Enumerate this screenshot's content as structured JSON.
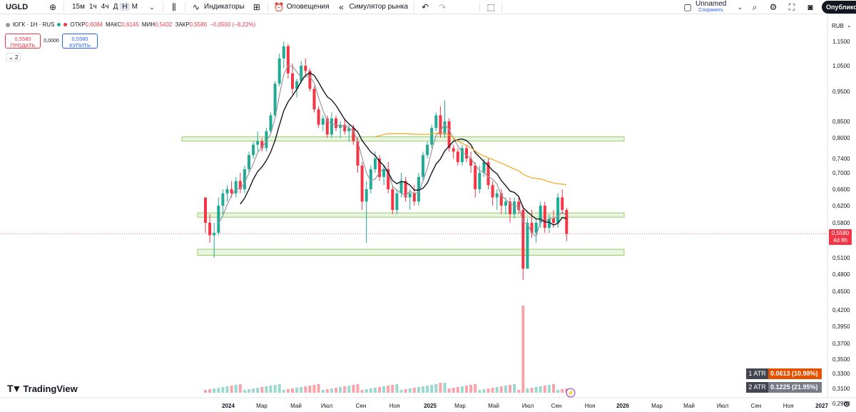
{
  "toolbar": {
    "symbol": "UGLD",
    "intervals": [
      "15м",
      "1ч",
      "4ч",
      "Д",
      "Н",
      "М"
    ],
    "active_interval": "Н",
    "indicators_label": "Индикаторы",
    "alerts_label": "Оповещения",
    "replay_label": "Симулятор рынка",
    "layout_name": "Unnamed",
    "layout_sub": "Сохранить",
    "publish_label": "Опублико"
  },
  "legend": {
    "title": "ЮГК · 1Н · RUS",
    "open_label": "ОТКР",
    "open": "0,6084",
    "high_label": "МАКС",
    "high": "0,6145",
    "low_label": "МИН",
    "low": "0,5432",
    "close_label": "ЗАКР",
    "close": "0,5580",
    "change": "−0,0500 (−8,22%)",
    "sell_price": "0,5580",
    "sell_label": "ПРОДАТЬ",
    "spread": "0,0000",
    "buy_price": "0,5580",
    "buy_label": "КУПИТЬ",
    "collapsed_count": "2"
  },
  "currency": "RUB",
  "price_axis": {
    "ticks": [
      "1,1500",
      "1,0500",
      "0,9500",
      "0,8500",
      "0,8000",
      "0,7400",
      "0,7000",
      "0,6600",
      "0,6200",
      "0,5800",
      "0,5100",
      "0,4800",
      "0,4500",
      "0,4200",
      "0,3950",
      "0,3700",
      "0,3500",
      "0,3300",
      "0,3100",
      "0,2900"
    ],
    "last_price": "0,5580",
    "countdown": "4d 8h"
  },
  "time_axis": {
    "labels": [
      "2024",
      "Мар",
      "Май",
      "Июл",
      "Сен",
      "Ноя",
      "2025",
      "Мар",
      "Май",
      "Июл",
      "Сен",
      "Ноя",
      "2026",
      "Мар",
      "Май",
      "Июл",
      "Сен",
      "Ноя",
      "2027"
    ]
  },
  "atr": [
    {
      "name": "1 ATR",
      "value": "0.0613 (10.98%)",
      "color": "#e65100"
    },
    {
      "name": "2 ATR",
      "value": "0.1225 (21.95%)",
      "color": "#787b86"
    }
  ],
  "branding": "TradingView",
  "colors": {
    "up": "#22ab94",
    "down": "#f23645",
    "ma_fast": "#9598a1",
    "ma_slow": "#131722",
    "ma_long": "#f5a623",
    "zone_fill": "#e8f5e3",
    "zone_border": "#9ccc65"
  },
  "chart_data": {
    "type": "candlestick",
    "support_zones": [
      {
        "from": 0.795,
        "to": 0.803
      },
      {
        "from": 0.593,
        "to": 0.603
      },
      {
        "from": 0.515,
        "to": 0.527
      }
    ],
    "last_close": 0.558
  }
}
